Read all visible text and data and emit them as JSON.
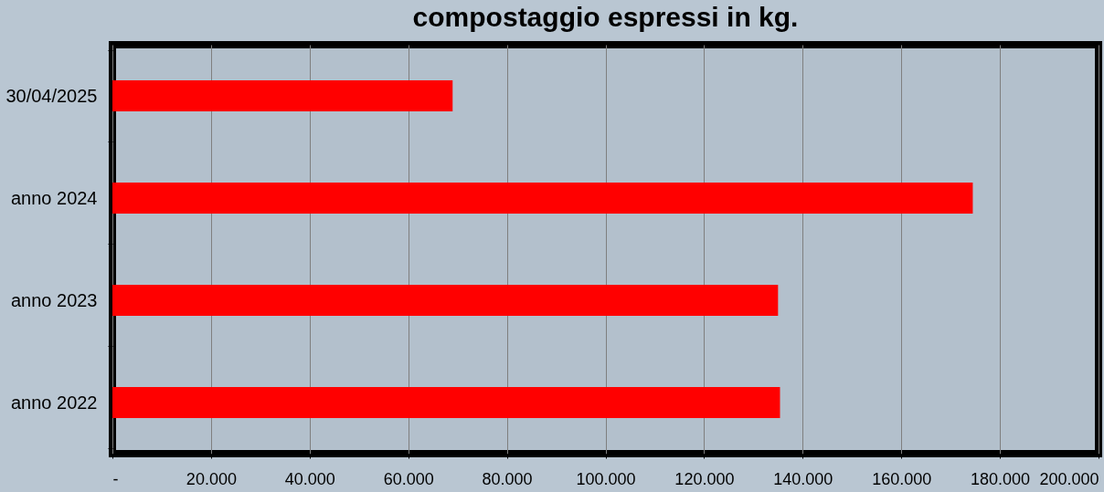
{
  "chart_data": {
    "type": "bar",
    "orientation": "horizontal",
    "title": "compostaggio espressi in kg.",
    "categories": [
      "30/04/2025",
      "anno 2024",
      "anno 2023",
      "anno 2022"
    ],
    "values": [
      69000,
      174500,
      135000,
      135400
    ],
    "color": "#ff0000",
    "xlim": [
      0,
      200000
    ],
    "xticks": [
      {
        "value": 0,
        "label": "-"
      },
      {
        "value": 20000,
        "label": "20.000"
      },
      {
        "value": 40000,
        "label": "40.000"
      },
      {
        "value": 60000,
        "label": "60.000"
      },
      {
        "value": 80000,
        "label": "80.000"
      },
      {
        "value": 100000,
        "label": "100.000"
      },
      {
        "value": 120000,
        "label": "120.000"
      },
      {
        "value": 140000,
        "label": "140.000"
      },
      {
        "value": 160000,
        "label": "160.000"
      },
      {
        "value": 180000,
        "label": "180.000"
      },
      {
        "value": 200000,
        "label": "200.000"
      }
    ],
    "grid": "x"
  }
}
